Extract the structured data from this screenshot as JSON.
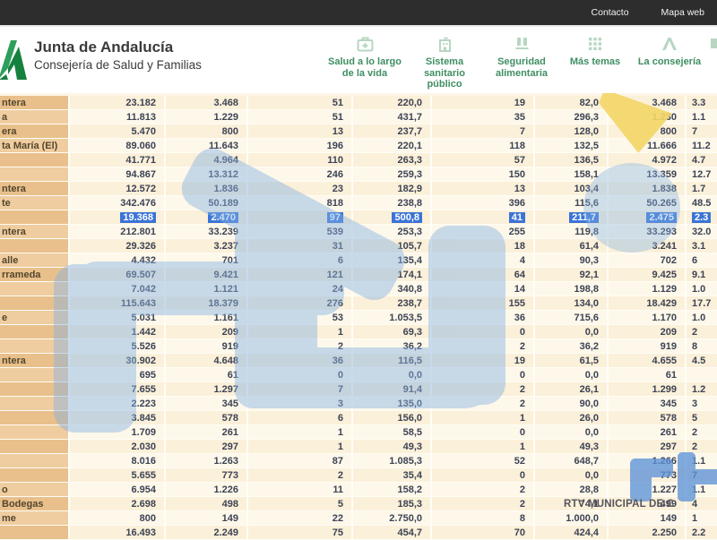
{
  "topbar": {
    "contact_label": "Contacto",
    "sitemap_label": "Mapa web"
  },
  "header": {
    "org": "Junta de Andalucía",
    "dept": "Consejería de Salud y Familias",
    "nav": [
      {
        "label": "Salud a lo largo de la vida",
        "icon": "first-aid-kit-icon"
      },
      {
        "label": "Sistema sanitario público",
        "icon": "hospital-icon"
      },
      {
        "label": "Seguridad alimentaria",
        "icon": "food-safety-icon"
      },
      {
        "label": "Más temas",
        "icon": "grid-icon"
      },
      {
        "label": "La consejería",
        "icon": "junta-a-icon"
      }
    ]
  },
  "watermark": {
    "station_text": "RTV MUNICIPAL DE C",
    "logo_blue": "#5e93d8",
    "logo_yellow": "#f3d566"
  },
  "colors": {
    "topbar_bg": "#2d2d2d",
    "nav_green": "#3f8e62",
    "row_dark": "#fbf0d9",
    "row_light": "#fdf8ea",
    "namecol_dark": "#e9c08b",
    "namecol_light": "#efcda0",
    "selection_blue": "#3b74d6"
  },
  "table": {
    "note": "left and right columns are cut off by the viewport; name cells show only trailing fragments",
    "rows": [
      {
        "name": "ntera",
        "highlighted": false,
        "cells": [
          "23.182",
          "3.468",
          "51",
          "220,0",
          "19",
          "82,0",
          "3.468",
          "3.3"
        ]
      },
      {
        "name": "a",
        "highlighted": false,
        "cells": [
          "11.813",
          "1.229",
          "51",
          "431,7",
          "35",
          "296,3",
          "1.230",
          "1.1"
        ]
      },
      {
        "name": "era",
        "highlighted": false,
        "cells": [
          "5.470",
          "800",
          "13",
          "237,7",
          "7",
          "128,0",
          "800",
          "7"
        ]
      },
      {
        "name": "ta María (El)",
        "highlighted": false,
        "cells": [
          "89.060",
          "11.643",
          "196",
          "220,1",
          "118",
          "132,5",
          "11.666",
          "11.2"
        ]
      },
      {
        "name": "",
        "highlighted": false,
        "cells": [
          "41.771",
          "4.964",
          "110",
          "263,3",
          "57",
          "136,5",
          "4.972",
          "4.7"
        ]
      },
      {
        "name": "",
        "highlighted": false,
        "cells": [
          "94.867",
          "13.312",
          "246",
          "259,3",
          "150",
          "158,1",
          "13.359",
          "12.7"
        ]
      },
      {
        "name": "ntera",
        "highlighted": false,
        "cells": [
          "12.572",
          "1.836",
          "23",
          "182,9",
          "13",
          "103,4",
          "1.838",
          "1.7"
        ]
      },
      {
        "name": "te",
        "highlighted": false,
        "cells": [
          "342.476",
          "50.189",
          "818",
          "238,8",
          "396",
          "115,6",
          "50.265",
          "48.5"
        ]
      },
      {
        "name": "",
        "highlighted": true,
        "cells": [
          "19.368",
          "2.470",
          "97",
          "500,8",
          "41",
          "211,7",
          "2.475",
          "2.3"
        ]
      },
      {
        "name": "ntera",
        "highlighted": false,
        "cells": [
          "212.801",
          "33.239",
          "539",
          "253,3",
          "255",
          "119,8",
          "33.293",
          "32.0"
        ]
      },
      {
        "name": "",
        "highlighted": false,
        "cells": [
          "29.326",
          "3.237",
          "31",
          "105,7",
          "18",
          "61,4",
          "3.241",
          "3.1"
        ]
      },
      {
        "name": "alle",
        "highlighted": false,
        "cells": [
          "4.432",
          "701",
          "6",
          "135,4",
          "4",
          "90,3",
          "702",
          "6"
        ]
      },
      {
        "name": "rrameda",
        "highlighted": false,
        "cells": [
          "69.507",
          "9.421",
          "121",
          "174,1",
          "64",
          "92,1",
          "9.425",
          "9.1"
        ]
      },
      {
        "name": "",
        "highlighted": false,
        "cells": [
          "7.042",
          "1.121",
          "24",
          "340,8",
          "14",
          "198,8",
          "1.129",
          "1.0"
        ]
      },
      {
        "name": "",
        "highlighted": false,
        "cells": [
          "115.643",
          "18.379",
          "276",
          "238,7",
          "155",
          "134,0",
          "18.429",
          "17.7"
        ]
      },
      {
        "name": "e",
        "highlighted": false,
        "cells": [
          "5.031",
          "1.161",
          "53",
          "1.053,5",
          "36",
          "715,6",
          "1.170",
          "1.0"
        ]
      },
      {
        "name": "",
        "highlighted": false,
        "cells": [
          "1.442",
          "209",
          "1",
          "69,3",
          "0",
          "0,0",
          "209",
          "2"
        ]
      },
      {
        "name": "",
        "highlighted": false,
        "cells": [
          "5.526",
          "919",
          "2",
          "36,2",
          "2",
          "36,2",
          "919",
          "8"
        ]
      },
      {
        "name": "ntera",
        "highlighted": false,
        "cells": [
          "30.902",
          "4.648",
          "36",
          "116,5",
          "19",
          "61,5",
          "4.655",
          "4.5"
        ]
      },
      {
        "name": "",
        "highlighted": false,
        "cells": [
          "695",
          "61",
          "0",
          "0,0",
          "0",
          "0,0",
          "61",
          ""
        ]
      },
      {
        "name": "",
        "highlighted": false,
        "cells": [
          "7.655",
          "1.297",
          "7",
          "91,4",
          "2",
          "26,1",
          "1.299",
          "1.2"
        ]
      },
      {
        "name": "",
        "highlighted": false,
        "cells": [
          "2.223",
          "345",
          "3",
          "135,0",
          "2",
          "90,0",
          "345",
          "3"
        ]
      },
      {
        "name": "",
        "highlighted": false,
        "cells": [
          "3.845",
          "578",
          "6",
          "156,0",
          "1",
          "26,0",
          "578",
          "5"
        ]
      },
      {
        "name": "",
        "highlighted": false,
        "cells": [
          "1.709",
          "261",
          "1",
          "58,5",
          "0",
          "0,0",
          "261",
          "2"
        ]
      },
      {
        "name": "",
        "highlighted": false,
        "cells": [
          "2.030",
          "297",
          "1",
          "49,3",
          "1",
          "49,3",
          "297",
          "2"
        ]
      },
      {
        "name": "",
        "highlighted": false,
        "cells": [
          "8.016",
          "1.263",
          "87",
          "1.085,3",
          "52",
          "648,7",
          "1.266",
          "1.1"
        ]
      },
      {
        "name": "",
        "highlighted": false,
        "cells": [
          "5.655",
          "773",
          "2",
          "35,4",
          "0",
          "0,0",
          "773",
          "7"
        ]
      },
      {
        "name": "o",
        "highlighted": false,
        "cells": [
          "6.954",
          "1.226",
          "11",
          "158,2",
          "2",
          "28,8",
          "1.227",
          "1.1"
        ]
      },
      {
        "name": "Bodegas",
        "highlighted": false,
        "cells": [
          "2.698",
          "498",
          "5",
          "185,3",
          "2",
          "74,1",
          "499",
          "4"
        ]
      },
      {
        "name": "me",
        "highlighted": false,
        "cells": [
          "800",
          "149",
          "22",
          "2.750,0",
          "8",
          "1.000,0",
          "149",
          "1"
        ]
      },
      {
        "name": "",
        "highlighted": false,
        "cells": [
          "16.493",
          "2.249",
          "75",
          "454,7",
          "70",
          "424,4",
          "2.250",
          "2.2"
        ]
      }
    ]
  }
}
